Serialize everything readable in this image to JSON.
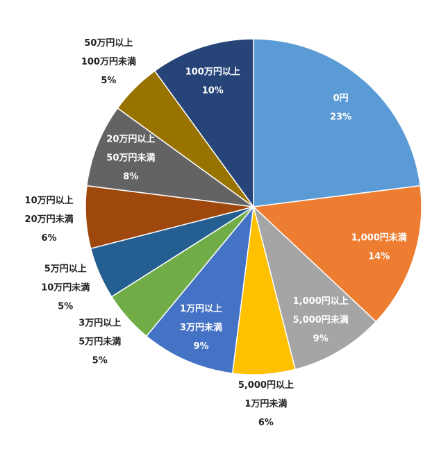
{
  "chart_data": {
    "type": "pie",
    "categories": [
      [
        "0円"
      ],
      [
        "1,000円未満"
      ],
      [
        "1,000円以上",
        "5,000円未満"
      ],
      [
        "5,000円以上",
        "1万円未満"
      ],
      [
        "1万円以上",
        "3万円未満"
      ],
      [
        "3万円以上",
        "5万円未満"
      ],
      [
        "5万円以上",
        "10万円未満"
      ],
      [
        "10万円以上",
        "20万円未満"
      ],
      [
        "20万円以上",
        "50万円未満"
      ],
      [
        "50万円以上",
        "100万円未満"
      ],
      [
        "100万円以上"
      ]
    ],
    "values": [
      23,
      14,
      9,
      6,
      9,
      5,
      5,
      6,
      8,
      5,
      10
    ],
    "value_labels": [
      "23%",
      "14%",
      "9%",
      "6%",
      "9%",
      "5%",
      "5%",
      "6%",
      "8%",
      "5%",
      "10%"
    ],
    "colors": [
      "#5b9bd5",
      "#ed7d31",
      "#a5a5a5",
      "#ffc000",
      "#4472c4",
      "#70ad47",
      "#255e91",
      "#9e480e",
      "#636363",
      "#997300",
      "#264478"
    ]
  }
}
